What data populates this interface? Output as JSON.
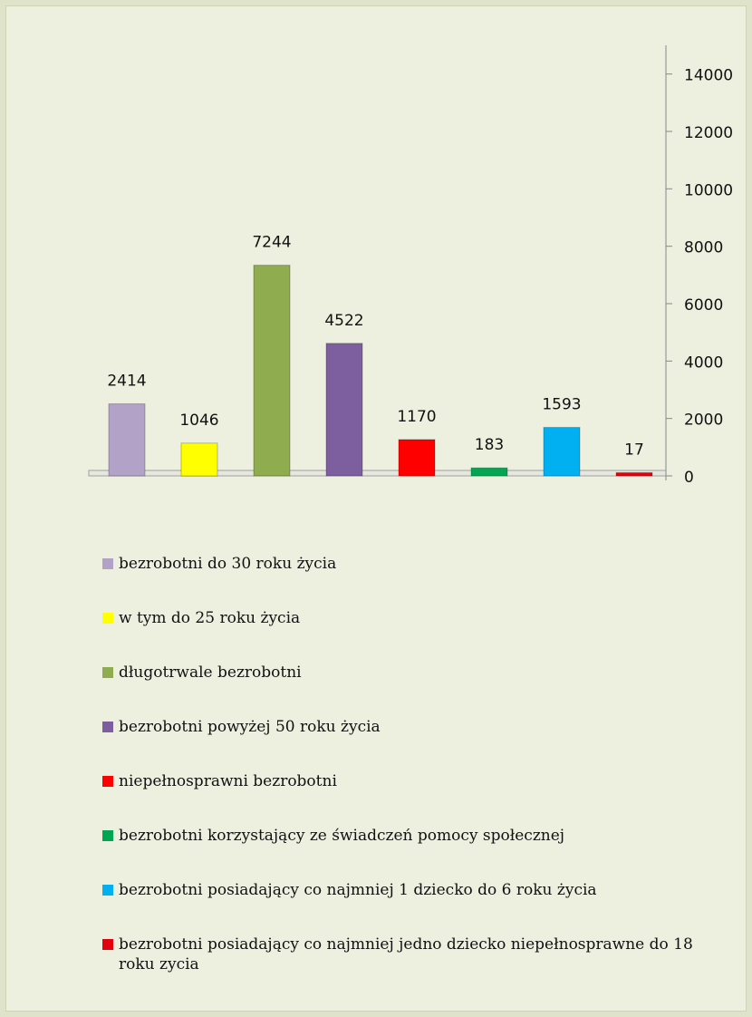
{
  "chart_data": {
    "type": "bar",
    "series": [
      {
        "name": "bezrobotni do 30 roku życia",
        "color": "#b3a2c7",
        "values": [
          2414
        ]
      },
      {
        "name": "w tym do 25 roku życia",
        "color": "#ffff00",
        "values": [
          1046
        ]
      },
      {
        "name": "długotrwale bezrobotni",
        "color": "#8fac4f",
        "values": [
          7244
        ]
      },
      {
        "name": "bezrobotni powyżej 50 roku życia",
        "color": "#7d5f9f",
        "values": [
          4522
        ]
      },
      {
        "name": "niepełnosprawni bezrobotni",
        "color": "#ff0000",
        "values": [
          1170
        ]
      },
      {
        "name": "bezrobotni korzystający ze świadczeń pomocy społecznej",
        "color": "#00a651",
        "values": [
          183
        ]
      },
      {
        "name": "bezrobotni posiadający co najmniej 1 dziecko do 6 roku życia",
        "color": "#00b0f0",
        "values": [
          1593
        ]
      },
      {
        "name": "bezrobotni posiadający co najmniej jedno dziecko niepełnosprawne do 18 roku zycia",
        "color": "#e3000f",
        "values": [
          17
        ]
      }
    ],
    "ylim": [
      0,
      15000
    ],
    "yticks": [
      0,
      2000,
      4000,
      6000,
      8000,
      10000,
      12000,
      14000
    ],
    "y_axis_side": "right",
    "legend": "bottom"
  }
}
